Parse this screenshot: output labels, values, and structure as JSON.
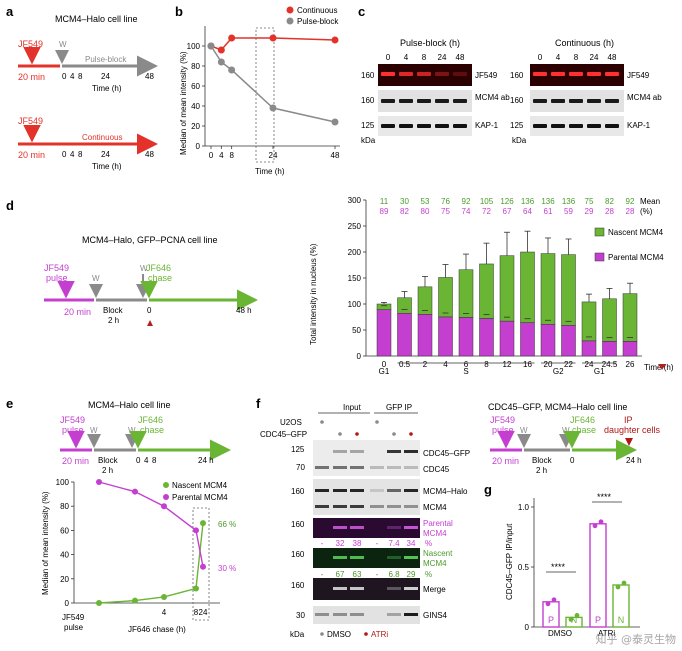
{
  "colors": {
    "red": "#e2322a",
    "grey": "#8a8a8a",
    "pink": "#c43fd0",
    "green": "#6ab534",
    "darkgreen": "#4a9a2a",
    "purple": "#7d2aa0"
  },
  "panel_a": {
    "letter": "a",
    "title": "MCM4–Halo cell line",
    "pulse_label": "JF549",
    "pulse_time": "20 min",
    "wash": "W",
    "block_label": "Pulse-block",
    "continuous_label": "Continuous",
    "ticks": [
      "0",
      "4",
      "8",
      "24",
      "48"
    ],
    "xlabel": "Time (h)"
  },
  "panel_b": {
    "letter": "b",
    "chart_data": {
      "type": "line",
      "x": [
        0,
        4,
        8,
        24,
        48
      ],
      "series": [
        {
          "name": "Continuous",
          "values": [
            100,
            96,
            108,
            108,
            106
          ]
        },
        {
          "name": "Pulse-block",
          "values": [
            100,
            84,
            76,
            38,
            24
          ]
        }
      ],
      "ylabel": "Median of mean intensity (%)",
      "xlabel": "Time (h)",
      "xticks": [
        "0",
        "4",
        "8",
        "24",
        "48"
      ],
      "yticks": [
        "0",
        "20",
        "40",
        "60",
        "80",
        "100"
      ],
      "ylim": [
        0,
        120
      ],
      "legend": "top-right"
    }
  },
  "panel_c": {
    "letter": "c",
    "left_title": "Pulse-block (h)",
    "right_title": "Continuous (h)",
    "lanes": [
      "0",
      "4",
      "8",
      "24",
      "48"
    ],
    "rows": [
      {
        "mw": "160",
        "label": "JF549"
      },
      {
        "mw": "160",
        "label": "MCM4 ab"
      },
      {
        "mw": "125",
        "label": "KAP-1"
      }
    ],
    "kda": "kDa",
    "pulse_jf549_levels": [
      1.0,
      0.85,
      0.75,
      0.4,
      0.25
    ]
  },
  "panel_d": {
    "letter": "d",
    "title": "MCM4–Halo, GFP–PCNA cell line",
    "pulse1": "JF549",
    "pulse1b": "pulse",
    "chase1": "JF646",
    "chase1b": "chase",
    "time1": "20 min",
    "block": "Block",
    "block_h": "2 h",
    "wash": "W",
    "zero": "0",
    "end": "48 h",
    "mean_label": "Mean",
    "mean_pct": "(%)",
    "chart_data": {
      "type": "bar",
      "categories": [
        "0",
        "0.5",
        "2",
        "4",
        "6",
        "8",
        "12",
        "16",
        "20",
        "22",
        "24",
        "24.5",
        "26"
      ],
      "series": [
        {
          "name": "Parental MCM4",
          "values": [
            89,
            82,
            80,
            75,
            74,
            72,
            67,
            64,
            61,
            59,
            29,
            28,
            28
          ]
        },
        {
          "name": "Nascent MCM4",
          "values": [
            11,
            30,
            53,
            76,
            92,
            105,
            126,
            136,
            136,
            136,
            75,
            82,
            92
          ]
        }
      ],
      "error_top": [
        3,
        12,
        20,
        25,
        30,
        40,
        45,
        40,
        30,
        30,
        15,
        20,
        20
      ],
      "nascent_row": [
        "11",
        "30",
        "53",
        "76",
        "92",
        "105",
        "126",
        "136",
        "136",
        "136",
        "75",
        "82",
        "92"
      ],
      "parental_row": [
        "89",
        "82",
        "80",
        "75",
        "74",
        "72",
        "67",
        "64",
        "61",
        "59",
        "29",
        "28",
        "28"
      ],
      "ylabel": "Total intensity in nucleus (%)",
      "xlabel": "Time (h)",
      "yticks": [
        "0",
        "50",
        "100",
        "150",
        "200",
        "250",
        "300"
      ],
      "ylim": [
        0,
        300
      ],
      "phases": [
        "G1",
        "S",
        "G2",
        "G1"
      ],
      "legend": "top-right"
    }
  },
  "panel_e": {
    "letter": "e",
    "title": "MCM4–Halo cell line",
    "pulse": "JF549",
    "pulse_b": "pulse",
    "chase": "JF646",
    "chase_b": "chase",
    "time1": "20 min",
    "block": "Block",
    "block_h": "2 h",
    "wash": "W",
    "ticks": [
      "0",
      "4",
      "8"
    ],
    "end": "24 h",
    "chart_data": {
      "type": "line",
      "x_labels": [
        "JF549 pulse",
        "0",
        "4",
        "8",
        "24"
      ],
      "series": [
        {
          "name": "Nascent MCM4",
          "values": [
            0,
            2,
            5,
            12,
            66
          ]
        },
        {
          "name": "Parental MCM4",
          "values": [
            100,
            92,
            80,
            60,
            30
          ]
        }
      ],
      "ylabel": "Median of mean intensity (%)",
      "xlabel": "JF646 chase (h)",
      "yticks": [
        "0",
        "20",
        "40",
        "60",
        "80",
        "100"
      ],
      "ylim": [
        0,
        100
      ],
      "annotations": [
        "66 %",
        "30 %"
      ],
      "legend": "top-right"
    }
  },
  "panel_f": {
    "letter": "f",
    "input": "Input",
    "gfpip": "GFP IP",
    "row_u2os": "U2OS",
    "row_cdc": "CDC45–GFP",
    "mw": [
      "125",
      "70",
      "160",
      "160",
      "160",
      "160",
      "30"
    ],
    "labels": {
      "cdc45gfp": "CDC45–GFP",
      "cdc45": "CDC45",
      "mcm4halo": "MCM4–Halo",
      "mcm4": "MCM4",
      "parental": "Parental",
      "parental2": "MCM4",
      "nascent": "Nascent",
      "nascent2": "MCM4",
      "merge": "Merge",
      "gins4": "GINS4"
    },
    "parental_vals": [
      "-",
      "32",
      "38",
      "-",
      "7.4",
      "34"
    ],
    "nascent_vals": [
      "-",
      "67",
      "63",
      "-",
      "6.8",
      "29"
    ],
    "pct": "%",
    "kda": "kDa",
    "dmso": "DMSO",
    "atri": "ATRi"
  },
  "panel_g_scheme": {
    "title": "CDC45–GFP, MCM4–Halo cell line",
    "pulse": "JF549",
    "pulse_b": "pulse",
    "chase": "JF646",
    "chase_b": "chase",
    "time1": "20 min",
    "block": "Block",
    "block_h": "2 h",
    "wash": "W",
    "zero": "0",
    "end": "24 h",
    "ip": "IP",
    "ip_b": "daughter cells"
  },
  "panel_g": {
    "letter": "g",
    "chart_data": {
      "type": "bar",
      "categories": [
        "P",
        "N",
        "P",
        "N"
      ],
      "groups": [
        "DMSO",
        "ATRi"
      ],
      "values": [
        0.21,
        0.08,
        0.86,
        0.35
      ],
      "ylabel": "CDC45–GFP IP/input",
      "yticks": [
        "0",
        "0.5",
        "1.0"
      ],
      "ylim": [
        0,
        1.0
      ],
      "significance": [
        "****",
        "****"
      ]
    }
  },
  "watermark": "知乎 @泰灵生物"
}
